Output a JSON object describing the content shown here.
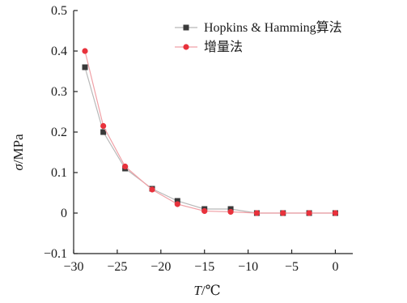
{
  "chart_data": {
    "type": "line",
    "xlabel": {
      "symbol": "T",
      "unit": "/℃"
    },
    "ylabel": {
      "symbol": "σ",
      "unit": "/MPa"
    },
    "xlim": [
      -30,
      2
    ],
    "ylim": [
      -0.1,
      0.5
    ],
    "xticks": [
      -30,
      -25,
      -20,
      -15,
      -10,
      -5,
      0
    ],
    "yticks": [
      0.5,
      0.4,
      0.3,
      0.2,
      0.1,
      0,
      -0.1
    ],
    "legend_position": "top-right",
    "grid": false,
    "series": [
      {
        "name": "Hopkins & Hamming算法",
        "marker": "square",
        "color": "#3a3a3a",
        "line_color": "#b8b8b8",
        "x": [
          -28.7,
          -26.6,
          -24.1,
          -21.0,
          -18.1,
          -15.0,
          -12.0,
          -9.0,
          -6.0,
          -3.0,
          0.0
        ],
        "y": [
          0.36,
          0.2,
          0.11,
          0.06,
          0.03,
          0.01,
          0.01,
          0.0,
          0.0,
          0.0,
          0.0
        ]
      },
      {
        "name": "增量法",
        "marker": "circle",
        "color": "#e8323c",
        "line_color": "#f0a0a6",
        "x": [
          -28.7,
          -26.6,
          -24.1,
          -21.0,
          -18.1,
          -15.0,
          -12.0,
          -9.0,
          -6.0,
          -3.0,
          0.0
        ],
        "y": [
          0.4,
          0.215,
          0.115,
          0.058,
          0.022,
          0.005,
          0.003,
          0.0,
          0.0,
          0.0,
          0.0
        ]
      }
    ]
  }
}
